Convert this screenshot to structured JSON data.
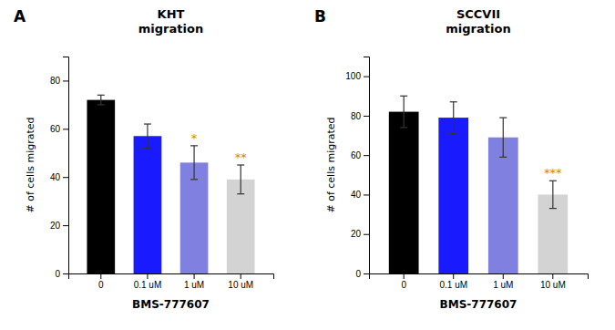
{
  "chart_data": [
    {
      "type": "bar",
      "title": "KHT\nmigration",
      "categories": [
        "0",
        "0.1 uM",
        "1 uM",
        "10 uM"
      ],
      "values": [
        72,
        57,
        46,
        39
      ],
      "errors": [
        2,
        5,
        7,
        6
      ],
      "colors": [
        "#000000",
        "#1a1aff",
        "#8080e0",
        "#d3d3d3"
      ],
      "ylabel": "# of cells migrated",
      "xlabel": "BMS-777607",
      "ylim": [
        0,
        90
      ],
      "yticks": [
        0,
        20,
        40,
        60,
        80
      ],
      "sig_labels": [
        null,
        null,
        "*",
        "**"
      ],
      "sig_color": "#d4860a",
      "annotations": [
        "A"
      ],
      "grid": false
    },
    {
      "type": "bar",
      "title": "SCCVII\nmigration",
      "categories": [
        "0",
        "0.1 uM",
        "1 uM",
        "10 uM"
      ],
      "values": [
        82,
        79,
        69,
        40
      ],
      "errors": [
        8,
        8,
        10,
        7
      ],
      "colors": [
        "#000000",
        "#1a1aff",
        "#8080e0",
        "#d3d3d3"
      ],
      "ylabel": "# of cells migrated",
      "xlabel": "BMS-777607",
      "ylim": [
        0,
        110
      ],
      "yticks": [
        0,
        20,
        40,
        60,
        80,
        100
      ],
      "sig_labels": [
        null,
        null,
        null,
        "***"
      ],
      "sig_color": "#d4860a",
      "annotations": [
        "B"
      ],
      "grid": false
    }
  ]
}
